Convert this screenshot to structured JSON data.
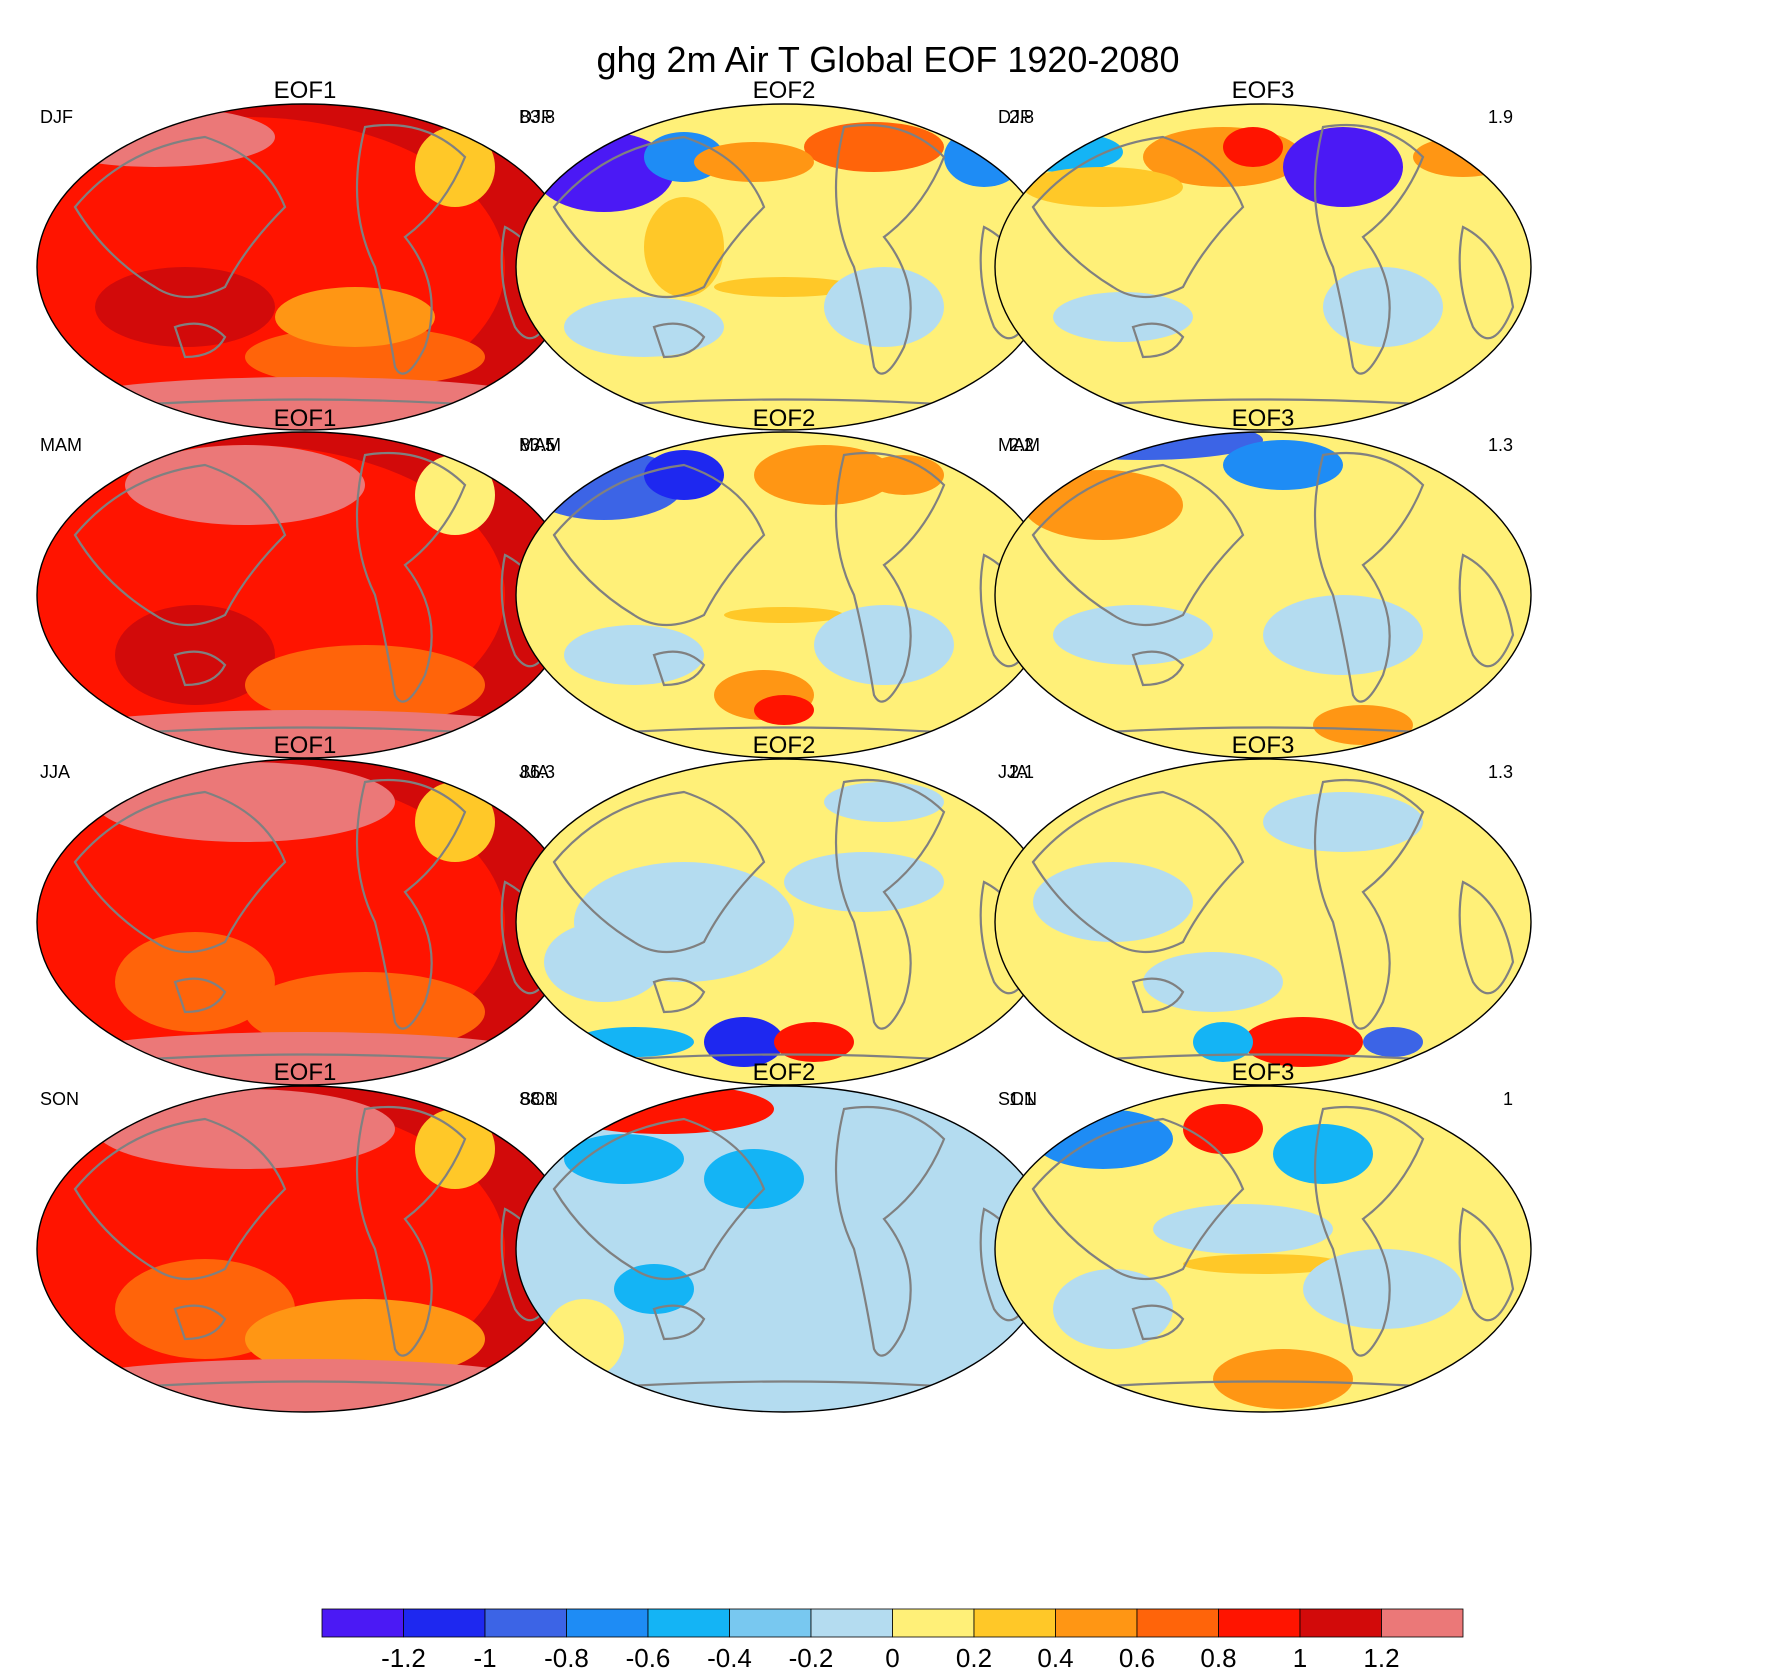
{
  "title": "ghg 2m Air T Global EOF 1920-2080",
  "chart_data": {
    "type": "heatmap",
    "projection": "global map (Winkel-type)",
    "title": "ghg 2m Air T Global EOF 1920-2080",
    "seasons": [
      "DJF",
      "MAM",
      "JJA",
      "SON"
    ],
    "modes": [
      "EOF1",
      "EOF2",
      "EOF3"
    ],
    "panels": [
      {
        "season": "DJF",
        "mode": "EOF1",
        "variance": "83.8"
      },
      {
        "season": "DJF",
        "mode": "EOF2",
        "variance": "2.8"
      },
      {
        "season": "DJF",
        "mode": "EOF3",
        "variance": "1.9"
      },
      {
        "season": "MAM",
        "mode": "EOF1",
        "variance": "83.5"
      },
      {
        "season": "MAM",
        "mode": "EOF2",
        "variance": "2.2"
      },
      {
        "season": "MAM",
        "mode": "EOF3",
        "variance": "1.3"
      },
      {
        "season": "JJA",
        "mode": "EOF1",
        "variance": "86.3"
      },
      {
        "season": "JJA",
        "mode": "EOF2",
        "variance": "2.1"
      },
      {
        "season": "JJA",
        "mode": "EOF3",
        "variance": "1.3"
      },
      {
        "season": "SON",
        "mode": "EOF1",
        "variance": "88.8"
      },
      {
        "season": "SON",
        "mode": "EOF2",
        "variance": "1.1"
      },
      {
        "season": "SON",
        "mode": "EOF3",
        "variance": "1"
      }
    ],
    "colorbar": {
      "tick_labels": [
        "-1.2",
        "-1",
        "-0.8",
        "-0.6",
        "-0.4",
        "-0.2",
        "0",
        "0.2",
        "0.4",
        "0.6",
        "0.8",
        "1",
        "1.2"
      ],
      "colors": [
        "#4b19f5",
        "#1e28f0",
        "#3c64e6",
        "#1e8cf5",
        "#14b4f5",
        "#78c8f0",
        "#b4dcf0",
        "#fff078",
        "#ffc828",
        "#ff9614",
        "#ff640a",
        "#ff1400",
        "#d20a0a",
        "#eb7878"
      ]
    }
  }
}
